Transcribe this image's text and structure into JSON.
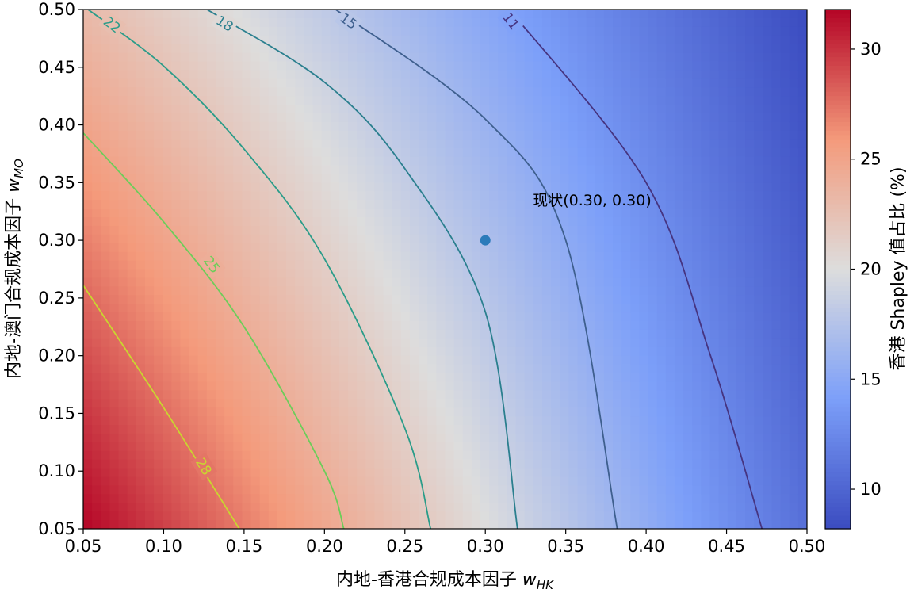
{
  "chart_data": {
    "type": "heatmap",
    "subtype": "filled-contour",
    "xlabel": "内地-香港合规成本因子",
    "xlabel_var": "w",
    "xlabel_sub": "HK",
    "ylabel": "内地-澳门合规成本因子",
    "ylabel_var": "w",
    "ylabel_sub": "MO",
    "xlim": [
      0.05,
      0.5
    ],
    "ylim": [
      0.05,
      0.5
    ],
    "x_ticks": [
      "0.05",
      "0.10",
      "0.15",
      "0.20",
      "0.25",
      "0.30",
      "0.35",
      "0.40",
      "0.45",
      "0.50"
    ],
    "y_ticks": [
      "0.05",
      "0.10",
      "0.15",
      "0.20",
      "0.25",
      "0.30",
      "0.35",
      "0.40",
      "0.45",
      "0.50"
    ],
    "grid": false,
    "colormap": "coolwarm",
    "colorbar": {
      "label": "香港 Shapley 值占比 (%)",
      "range": [
        8.2,
        31.8
      ],
      "ticks": [
        "10",
        "15",
        "20",
        "25",
        "30"
      ],
      "low_color": "#3b4cc0",
      "mid_color": "#dddddd",
      "high_color": "#b40426"
    },
    "field_corners": {
      "x0y0": 31.8,
      "x1y0": 10.7,
      "x0y1": 23.1,
      "x1y1": 8.2
    },
    "contours": [
      {
        "level": 28,
        "label": "28",
        "color": "#c9d62f",
        "points": [
          [
            0.05,
            0.261
          ],
          [
            0.1,
            0.155
          ],
          [
            0.147,
            0.05
          ]
        ],
        "label_at": [
          0.125,
          0.104
        ]
      },
      {
        "level": 25,
        "label": "25",
        "color": "#6ccd59",
        "points": [
          [
            0.05,
            0.393
          ],
          [
            0.1,
            0.316
          ],
          [
            0.15,
            0.225
          ],
          [
            0.2,
            0.1
          ],
          [
            0.212,
            0.05
          ]
        ],
        "label_at": [
          0.13,
          0.279
        ]
      },
      {
        "level": 22,
        "label": "22",
        "color": "#2a9c89",
        "points": [
          [
            0.053,
            0.5
          ],
          [
            0.1,
            0.451
          ],
          [
            0.15,
            0.379
          ],
          [
            0.2,
            0.284
          ],
          [
            0.25,
            0.137
          ],
          [
            0.266,
            0.05
          ]
        ],
        "label_at": [
          0.068,
          0.487
        ]
      },
      {
        "level": 18,
        "label": "18",
        "color": "#2a7f8e",
        "points": [
          [
            0.127,
            0.5
          ],
          [
            0.2,
            0.437
          ],
          [
            0.25,
            0.362
          ],
          [
            0.3,
            0.238
          ],
          [
            0.32,
            0.05
          ]
        ],
        "label_at": [
          0.138,
          0.488
        ]
      },
      {
        "level": 15,
        "label": "15",
        "color": "#3e5f8e",
        "points": [
          [
            0.207,
            0.5
          ],
          [
            0.3,
            0.405
          ],
          [
            0.35,
            0.3
          ],
          [
            0.382,
            0.05
          ]
        ],
        "label_at": [
          0.215,
          0.49
        ]
      },
      {
        "level": 11,
        "label": "11",
        "color": "#463480",
        "points": [
          [
            0.315,
            0.5
          ],
          [
            0.4,
            0.35
          ],
          [
            0.44,
            0.2
          ],
          [
            0.472,
            0.05
          ]
        ],
        "label_at": [
          0.316,
          0.49
        ]
      }
    ],
    "point": {
      "x": 0.3,
      "y": 0.3,
      "label": "现状(0.30, 0.30)",
      "color": "#2b7bba"
    }
  }
}
